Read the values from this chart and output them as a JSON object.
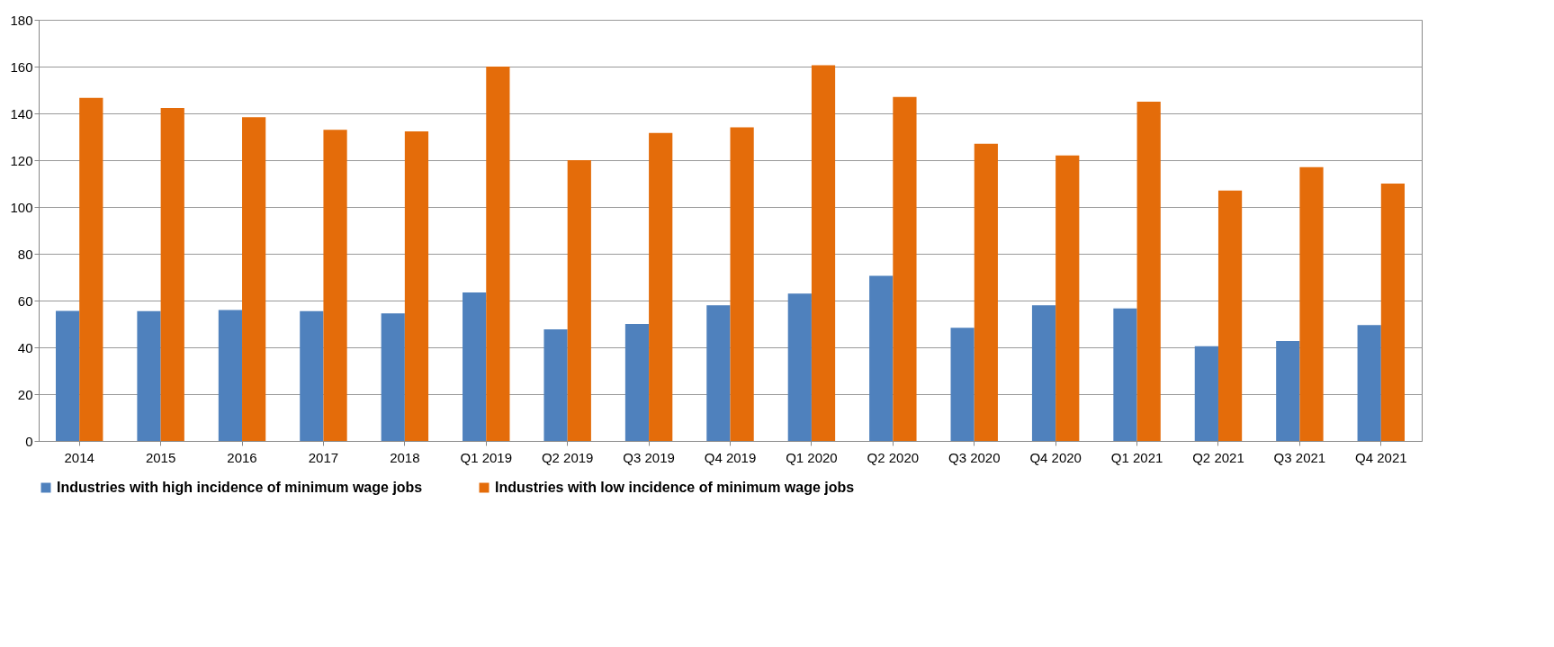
{
  "chart_data": {
    "type": "bar",
    "categories": [
      "2014",
      "2015",
      "2016",
      "2017",
      "2018",
      "Q1 2019",
      "Q2 2019",
      "Q3 2019",
      "Q4 2019",
      "Q1 2020",
      "Q2 2020",
      "Q3 2020",
      "Q4 2020",
      "Q1 2021",
      "Q2 2021",
      "Q3 2021",
      "Q4 2021"
    ],
    "series": [
      {
        "name": "Industries with high incidence of minimum wage jobs",
        "color": "#4f81bd",
        "values": [
          55.6,
          55.5,
          56,
          55.5,
          54.5,
          63.5,
          47.7,
          50,
          58,
          63,
          70.6,
          48.4,
          58,
          56.6,
          40.5,
          42.7,
          49.5
        ]
      },
      {
        "name": "Industries with low incidence of minimum wage jobs",
        "color": "#e46c0a",
        "values": [
          146.6,
          142.3,
          138.4,
          133,
          132.3,
          160,
          120,
          131.6,
          134,
          160.6,
          147,
          127,
          122,
          145,
          107,
          117,
          110
        ]
      }
    ],
    "ylim": [
      0,
      180
    ],
    "yticks": [
      0,
      20,
      40,
      60,
      80,
      100,
      120,
      140,
      160,
      180
    ],
    "grid": "y",
    "legend": "bottom"
  }
}
